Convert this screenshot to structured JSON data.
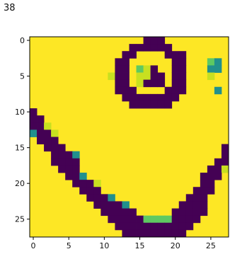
{
  "label": "38",
  "chart_data": {
    "type": "heatmap",
    "title": "",
    "xlabel": "",
    "ylabel": "",
    "rows": 28,
    "cols": 28,
    "xlim": [
      -0.5,
      27.5
    ],
    "ylim": [
      27.5,
      -0.5
    ],
    "xticks": [
      0,
      5,
      10,
      15,
      20,
      25
    ],
    "yticks": [
      0,
      5,
      10,
      15,
      20,
      25
    ],
    "colormap": "viridis",
    "value_range": [
      0,
      1
    ],
    "palette": {
      "0": "#fde725",
      "1": "#440154",
      "2": "#21908d",
      "3": "#5ec962",
      "4": "#c8e020"
    },
    "grid": false,
    "rows_data": [
      "0000000000000000111000000000",
      "0000000000000011111100000000",
      "0000000000000110000111000000",
      "0000000000001100000011000320",
      "0000000000001103410011000220",
      "0000000000041104411011000400",
      "0000000000001104111011000000",
      "0000000000001110000111000020",
      "0000000000000111111110000000",
      "0000000000000011111100000000",
      "1000000000000000000000000000",
      "1100000000000000000000000000",
      "1140000000000000000000000000",
      "2114000000000000000000000000",
      "0111000000000000000000000000",
      "0011100000000000000000000001",
      "0001112000000000000000000001",
      "0001111000000000000000000011",
      "0000111000000000000000000114",
      "0000011200000000000000001110",
      "0000001114000000000000001100",
      "0000000111000000000000011100",
      "0000000011120000000000111000",
      "0000000001111200000001111000",
      "0000000000111110000011111000",
      "0000000000011111333311110000",
      "0000000000001111111111100000",
      "0000000000000111111111000000"
    ]
  }
}
